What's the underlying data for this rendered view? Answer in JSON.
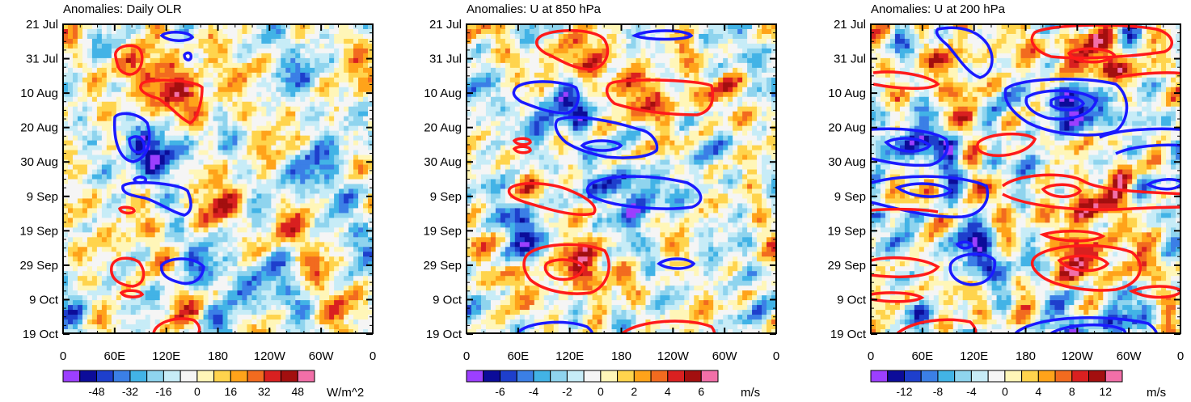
{
  "chart_data": [
    {
      "type": "heatmap",
      "title": "Anomalies: Daily OLR",
      "x_ticks": [
        "0",
        "60E",
        "120E",
        "180",
        "120W",
        "60W",
        "0"
      ],
      "y_ticks": [
        "21 Jul",
        "31 Jul",
        "10 Aug",
        "20 Aug",
        "30 Aug",
        "9 Sep",
        "19 Sep",
        "29 Sep",
        "9 Oct",
        "19 Oct"
      ],
      "colorbar_labels": [
        "-48",
        "-32",
        "-16",
        "0",
        "16",
        "32",
        "48"
      ],
      "units": "W/m^2",
      "contour_colors": {
        "positive": "#ff1a1a",
        "negative": "#1a1aff"
      }
    },
    {
      "type": "heatmap",
      "title": "Anomalies: U at 850 hPa",
      "x_ticks": [
        "0",
        "60E",
        "120E",
        "180",
        "120W",
        "60W",
        "0"
      ],
      "y_ticks": [
        "21 Jul",
        "31 Jul",
        "10 Aug",
        "20 Aug",
        "30 Aug",
        "9 Sep",
        "19 Sep",
        "29 Sep",
        "9 Oct",
        "19 Oct"
      ],
      "colorbar_labels": [
        "-6",
        "-4",
        "-2",
        "0",
        "2",
        "4",
        "6"
      ],
      "units": "m/s",
      "contour_colors": {
        "positive": "#ff1a1a",
        "negative": "#1a1aff"
      }
    },
    {
      "type": "heatmap",
      "title": "Anomalies: U at 200 hPa",
      "x_ticks": [
        "0",
        "60E",
        "120E",
        "180",
        "120W",
        "60W",
        "0"
      ],
      "y_ticks": [
        "21 Jul",
        "31 Jul",
        "10 Aug",
        "20 Aug",
        "30 Aug",
        "9 Sep",
        "19 Sep",
        "29 Sep",
        "9 Oct",
        "19 Oct"
      ],
      "colorbar_labels": [
        "-12",
        "-8",
        "-4",
        "0",
        "4",
        "8",
        "12"
      ],
      "units": "m/s",
      "contour_colors": {
        "positive": "#ff1a1a",
        "negative": "#1a1aff"
      }
    }
  ],
  "palette": [
    "#9c3fff",
    "#0c0c99",
    "#1e3fcc",
    "#3b7fe6",
    "#42b3e6",
    "#8fd4ee",
    "#c7ecf7",
    "#f5f5f5",
    "#fff6b8",
    "#ffd44d",
    "#ffa31a",
    "#f26b1f",
    "#d92020",
    "#a30f0f",
    "#f26fa8"
  ]
}
